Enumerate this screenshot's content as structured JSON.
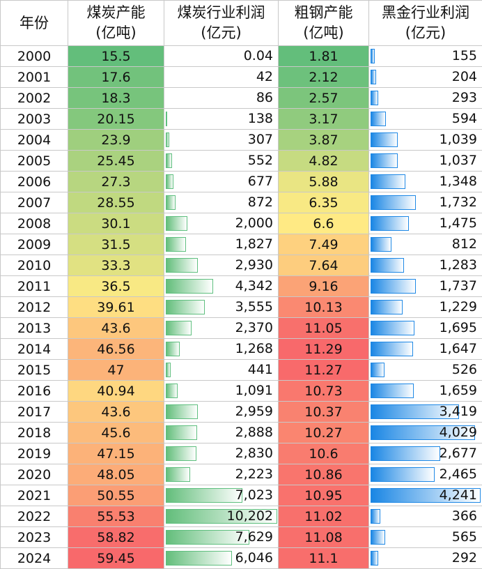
{
  "headers": {
    "year": "年份",
    "coal_capacity": "煤炭产能",
    "coal_capacity_unit": "(亿吨)",
    "coal_profit": "煤炭行业利润",
    "coal_profit_unit": "(亿元)",
    "steel_capacity": "粗钢产能",
    "steel_capacity_unit": "(亿吨)",
    "ferrous_profit": "黑金行业利润",
    "ferrous_profit_unit": "(亿元)"
  },
  "rows": [
    {
      "year": "2000",
      "coal_capacity": "15.5",
      "coal_profit": "0.04",
      "steel_capacity": "1.81",
      "ferrous_profit": "155"
    },
    {
      "year": "2001",
      "coal_capacity": "17.6",
      "coal_profit": "42",
      "steel_capacity": "2.12",
      "ferrous_profit": "204"
    },
    {
      "year": "2002",
      "coal_capacity": "18.3",
      "coal_profit": "86",
      "steel_capacity": "2.57",
      "ferrous_profit": "293"
    },
    {
      "year": "2003",
      "coal_capacity": "20.15",
      "coal_profit": "138",
      "steel_capacity": "3.17",
      "ferrous_profit": "594"
    },
    {
      "year": "2004",
      "coal_capacity": "23.9",
      "coal_profit": "307",
      "steel_capacity": "3.87",
      "ferrous_profit": "1,039"
    },
    {
      "year": "2005",
      "coal_capacity": "25.45",
      "coal_profit": "552",
      "steel_capacity": "4.82",
      "ferrous_profit": "1,037"
    },
    {
      "year": "2006",
      "coal_capacity": "27.3",
      "coal_profit": "677",
      "steel_capacity": "5.88",
      "ferrous_profit": "1,348"
    },
    {
      "year": "2007",
      "coal_capacity": "28.55",
      "coal_profit": "872",
      "steel_capacity": "6.35",
      "ferrous_profit": "1,732"
    },
    {
      "year": "2008",
      "coal_capacity": "30.1",
      "coal_profit": "2,000",
      "steel_capacity": "6.6",
      "ferrous_profit": "1,475"
    },
    {
      "year": "2009",
      "coal_capacity": "31.5",
      "coal_profit": "1,827",
      "steel_capacity": "7.49",
      "ferrous_profit": "812"
    },
    {
      "year": "2010",
      "coal_capacity": "33.3",
      "coal_profit": "2,930",
      "steel_capacity": "7.64",
      "ferrous_profit": "1,283"
    },
    {
      "year": "2011",
      "coal_capacity": "36.5",
      "coal_profit": "4,342",
      "steel_capacity": "9.16",
      "ferrous_profit": "1,737"
    },
    {
      "year": "2012",
      "coal_capacity": "39.61",
      "coal_profit": "3,555",
      "steel_capacity": "10.13",
      "ferrous_profit": "1,229"
    },
    {
      "year": "2013",
      "coal_capacity": "43.6",
      "coal_profit": "2,370",
      "steel_capacity": "11.05",
      "ferrous_profit": "1,695"
    },
    {
      "year": "2014",
      "coal_capacity": "46.56",
      "coal_profit": "1,268",
      "steel_capacity": "11.29",
      "ferrous_profit": "1,647"
    },
    {
      "year": "2015",
      "coal_capacity": "47",
      "coal_profit": "441",
      "steel_capacity": "11.27",
      "ferrous_profit": "526"
    },
    {
      "year": "2016",
      "coal_capacity": "40.94",
      "coal_profit": "1,091",
      "steel_capacity": "10.73",
      "ferrous_profit": "1,659"
    },
    {
      "year": "2017",
      "coal_capacity": "43.6",
      "coal_profit": "2,959",
      "steel_capacity": "10.37",
      "ferrous_profit": "3,419"
    },
    {
      "year": "2018",
      "coal_capacity": "45.6",
      "coal_profit": "2,888",
      "steel_capacity": "10.27",
      "ferrous_profit": "4,029"
    },
    {
      "year": "2019",
      "coal_capacity": "47.15",
      "coal_profit": "2,830",
      "steel_capacity": "10.6",
      "ferrous_profit": "2,677"
    },
    {
      "year": "2020",
      "coal_capacity": "48.05",
      "coal_profit": "2,223",
      "steel_capacity": "10.86",
      "ferrous_profit": "2,465"
    },
    {
      "year": "2021",
      "coal_capacity": "50.55",
      "coal_profit": "7,023",
      "steel_capacity": "10.95",
      "ferrous_profit": "4,241"
    },
    {
      "year": "2022",
      "coal_capacity": "55.53",
      "coal_profit": "10,202",
      "steel_capacity": "11.02",
      "ferrous_profit": "366"
    },
    {
      "year": "2023",
      "coal_capacity": "58.82",
      "coal_profit": "7,629",
      "steel_capacity": "11.08",
      "ferrous_profit": "565"
    },
    {
      "year": "2024",
      "coal_capacity": "59.45",
      "coal_profit": "6,046",
      "steel_capacity": "11.1",
      "ferrous_profit": "292"
    }
  ],
  "formatting": {
    "color_scale_low": "#63be7b",
    "color_scale_mid": "#ffeb84",
    "color_scale_high": "#f8696b",
    "coal_profit_bar_color": "#63be7b",
    "ferrous_profit_bar_color": "#1a86e4"
  }
}
